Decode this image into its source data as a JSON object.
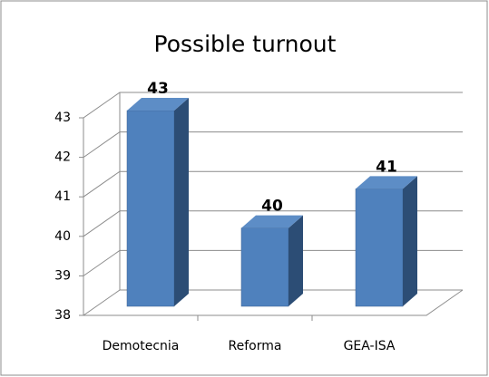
{
  "chart_data": {
    "type": "bar3d",
    "title": "Possible turnout",
    "categories": [
      "Demotecnia",
      "Reforma",
      "GEA-ISA"
    ],
    "values": [
      43,
      40,
      41
    ],
    "color": "#4f81bd",
    "ylim": [
      38,
      43
    ],
    "yticks": [
      38,
      39,
      40,
      41,
      42,
      43
    ],
    "grid": true
  }
}
